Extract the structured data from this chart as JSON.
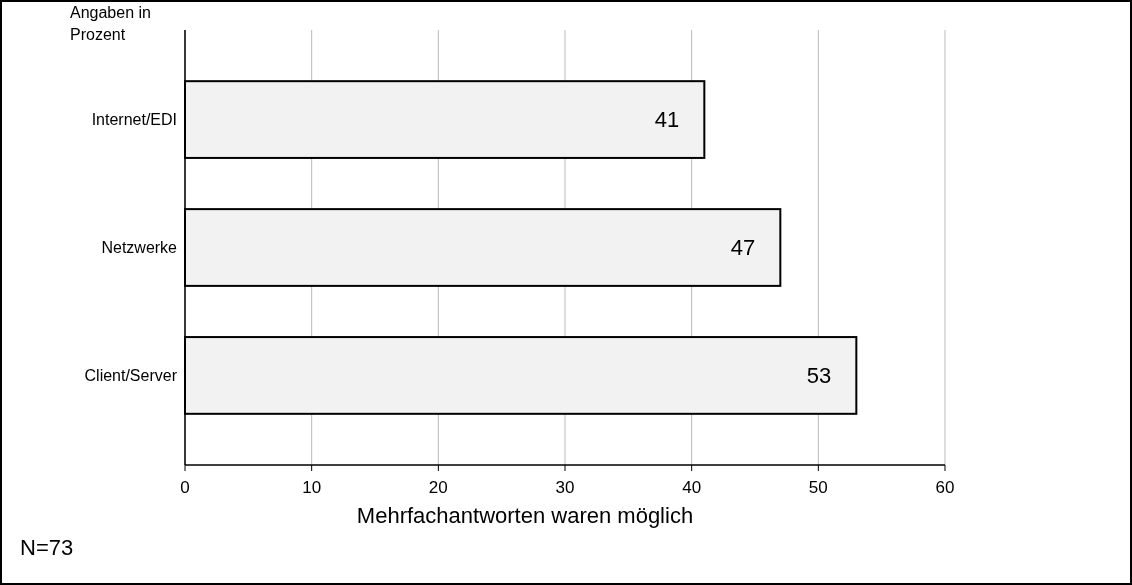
{
  "chart_data": {
    "type": "bar",
    "orientation": "horizontal",
    "categories": [
      "Internet/EDI",
      "Netzwerke",
      "Client/Server"
    ],
    "values": [
      41,
      47,
      53
    ],
    "color": "#f2f2f2",
    "xlim": [
      0,
      60
    ],
    "xticks": [
      0,
      10,
      20,
      30,
      40,
      50,
      60
    ],
    "grid": "x",
    "data_labels": true,
    "xlabel": "Mehrfachantworten waren möglich",
    "annotations": [
      "Angaben in Prozent",
      "N=73"
    ]
  }
}
